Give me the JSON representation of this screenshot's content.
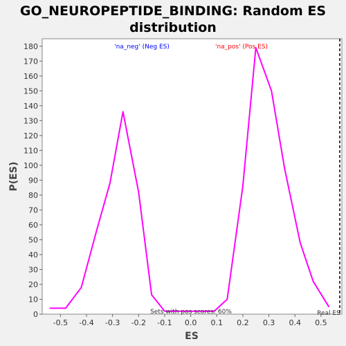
{
  "chart_data": {
    "type": "line",
    "title_line1": "GO_NEUROPEPTIDE_BINDING: Random ES",
    "title_line2": "distribution",
    "xlabel": "ES",
    "ylabel": "P(ES)",
    "xlim": [
      -0.57,
      0.58
    ],
    "ylim": [
      0,
      185
    ],
    "xticks": [
      -0.5,
      -0.4,
      -0.3,
      -0.2,
      -0.1,
      0.0,
      0.1,
      0.2,
      0.3,
      0.4,
      0.5
    ],
    "xtick_labels": [
      "-0.5",
      "-0.4",
      "-0.3",
      "-0.2",
      "-0.1",
      "0.0",
      "0.1",
      "0.2",
      "0.3",
      "0.4",
      "0.5"
    ],
    "yticks": [
      0,
      10,
      20,
      30,
      40,
      50,
      60,
      70,
      80,
      90,
      100,
      110,
      120,
      130,
      140,
      150,
      160,
      170,
      180
    ],
    "ytick_labels": [
      "0",
      "10",
      "20",
      "30",
      "40",
      "50",
      "60",
      "70",
      "80",
      "90",
      "100",
      "110",
      "120",
      "130",
      "140",
      "150",
      "160",
      "170",
      "180"
    ],
    "series": [
      {
        "color": "#ff00ff",
        "x": [
          -0.54,
          -0.48,
          -0.42,
          -0.36,
          -0.31,
          -0.26,
          -0.2,
          -0.15,
          -0.1,
          0.09,
          0.14,
          0.2,
          0.25,
          0.31,
          0.36,
          0.42,
          0.47,
          0.53
        ],
        "y": [
          4,
          4,
          18,
          57,
          88,
          136,
          82,
          13,
          2,
          2,
          10,
          86,
          179,
          150,
          98,
          48,
          22,
          5
        ]
      }
    ],
    "real_es_x": 0.572,
    "annotations": {
      "neg_label": "'na_neg' (Neg ES)",
      "neg_color": "#0000ff",
      "pos_label": "'na_pos' (Pos ES)",
      "pos_color": "#ff0000",
      "pos_scores": "Sets with pos scores: 60%",
      "real_es": "Real ES"
    }
  }
}
